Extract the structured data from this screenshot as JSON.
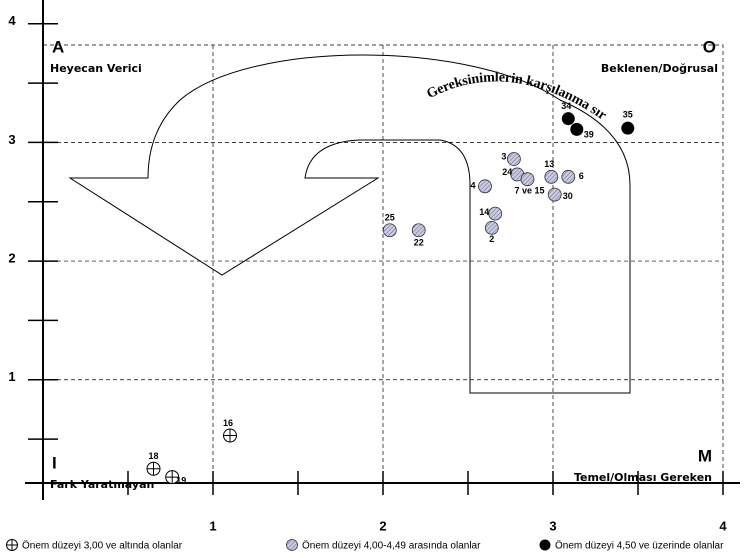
{
  "chart_data": {
    "type": "scatter",
    "quadrants": {
      "top_left": {
        "letter": "A",
        "label": "Heyecan Verici"
      },
      "top_right": {
        "letter": "O",
        "label": "Beklenen/Doğrusal"
      },
      "bottom_left": {
        "letter": "I",
        "label": "Fark Yaratmayan"
      },
      "bottom_right": {
        "letter": "M",
        "label": "Temel/Olması Gereken"
      }
    },
    "arrow_label": "Gereksinimlerin karşılanma sırası",
    "xlim": [
      0,
      4.1
    ],
    "ylim": [
      0.13,
      4.2
    ],
    "xticks": [
      1,
      2,
      3,
      4
    ],
    "yticks": [
      1,
      2,
      3,
      4
    ],
    "minor_ticks": [
      0.5,
      1.5,
      2.5,
      3.5
    ],
    "grid": true,
    "series": [
      {
        "name": "Önem düzeyi 3,00 ve altında olanlar",
        "marker": "crossed",
        "color": "#000000",
        "labels": [
          "16",
          "18",
          "19"
        ],
        "x": [
          1.1,
          0.65,
          0.76
        ],
        "y": [
          0.53,
          0.25,
          0.18
        ]
      },
      {
        "name": "Önem düzeyi 4,00-4,49 arasında olanlar",
        "marker": "hatched",
        "color": "#c8cbe8",
        "labels": [
          "25",
          "22",
          "3",
          "24",
          "7 ve 15",
          "4",
          "13",
          "6",
          "30",
          "14",
          "2"
        ],
        "x": [
          2.04,
          2.21,
          2.77,
          2.79,
          2.85,
          2.6,
          2.99,
          3.09,
          3.01,
          2.66,
          2.64
        ],
        "y": [
          2.26,
          2.26,
          2.86,
          2.73,
          2.69,
          2.63,
          2.71,
          2.71,
          2.56,
          2.4,
          2.28
        ]
      },
      {
        "name": "Önem düzeyi 4,50 ve üzerinde olanlar",
        "marker": "filled",
        "color": "#000000",
        "labels": [
          "34",
          "39",
          "35"
        ],
        "x": [
          3.09,
          3.14,
          3.44
        ],
        "y": [
          3.2,
          3.11,
          3.12
        ]
      }
    ]
  }
}
